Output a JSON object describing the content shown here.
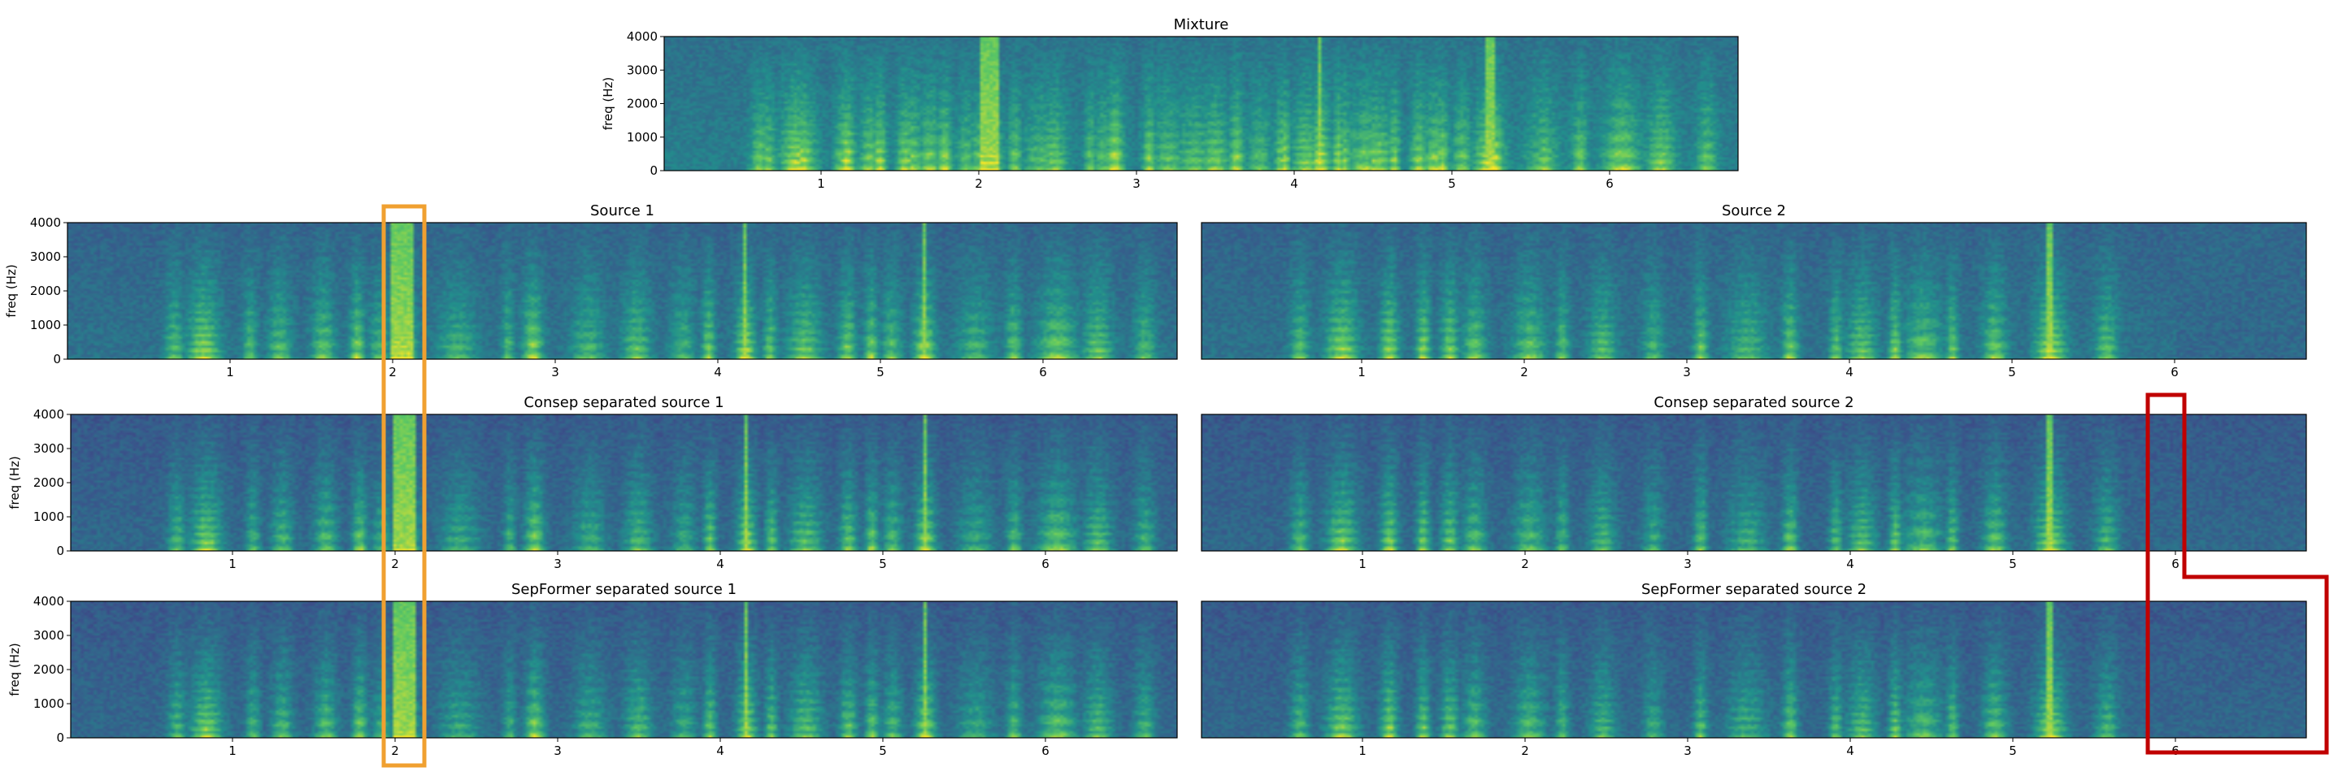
{
  "figure": {
    "type": "spectrogram-grid",
    "panels": [
      {
        "id": "mixture",
        "title": "Mixture",
        "ylabel": "freq (Hz)",
        "show_yticks": true
      },
      {
        "id": "source1",
        "title": "Source 1",
        "ylabel": "freq (Hz)",
        "show_yticks": true
      },
      {
        "id": "source2",
        "title": "Source 2",
        "ylabel": "",
        "show_yticks": false
      },
      {
        "id": "consep1",
        "title": "Consep separated source 1",
        "ylabel": "freq (Hz)",
        "show_yticks": true
      },
      {
        "id": "consep2",
        "title": "Consep separated source 2",
        "ylabel": "",
        "show_yticks": false
      },
      {
        "id": "sepformer1",
        "title": "SepFormer separated source 1",
        "ylabel": "freq (Hz)",
        "show_yticks": true
      },
      {
        "id": "sepformer2",
        "title": "SepFormer separated source 2",
        "ylabel": "",
        "show_yticks": false
      }
    ]
  },
  "chart_data": {
    "type": "heatmap",
    "x_ticks": [
      "1",
      "2",
      "3",
      "4",
      "5",
      "6"
    ],
    "y_ticks": [
      "0",
      "1000",
      "2000",
      "3000",
      "4000"
    ],
    "xlim": [
      0,
      6.8
    ],
    "ylim": [
      0,
      4000
    ],
    "colormap": "viridis",
    "colormap_stops": [
      "#440154",
      "#3b528b",
      "#21918c",
      "#5ec962",
      "#fde725"
    ],
    "annotations": [
      {
        "id": "orange-box",
        "color": "#f0a030",
        "time_range": [
          1.95,
          2.2
        ],
        "spans_panels": [
          "source1",
          "consep1",
          "sepformer1"
        ]
      },
      {
        "id": "red-box",
        "color": "#c00000",
        "time_range": [
          5.85,
          7.0
        ],
        "spans_panels": [
          "consep2",
          "sepformer2"
        ]
      }
    ]
  }
}
